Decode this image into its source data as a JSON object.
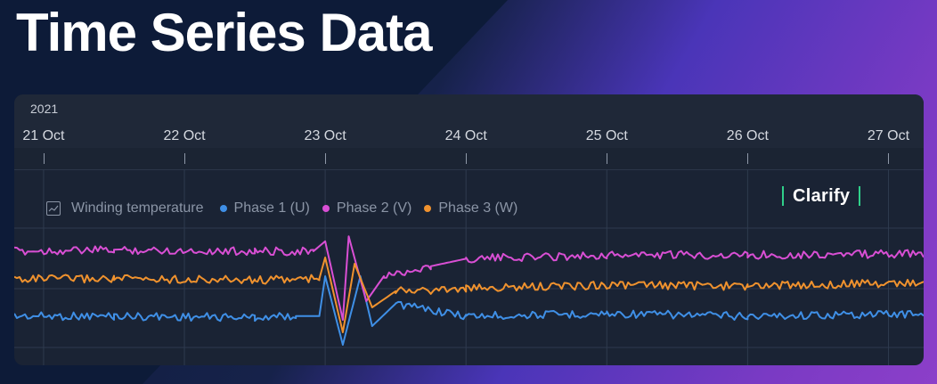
{
  "headline": "Time Series Data",
  "brand": "Clarify",
  "timeline": {
    "year": "2021",
    "dates": [
      "21 Oct",
      "22 Oct",
      "23 Oct",
      "24 Oct",
      "25 Oct",
      "26 Oct",
      "27 Oct"
    ]
  },
  "legend": {
    "group": "Winding temperature",
    "separator": "•",
    "items": [
      {
        "label": "Phase 1 (U)",
        "color": "#3f8fe6"
      },
      {
        "label": "Phase 2 (V)",
        "color": "#d94fd4"
      },
      {
        "label": "Phase 3 (W)",
        "color": "#f0922e"
      }
    ]
  },
  "colors": {
    "background_dark": "#0d1b38",
    "background_purple": "#8c3fc9",
    "panel": "#1a2334",
    "brand_accent": "#2fd08a"
  },
  "chart_data": {
    "type": "line",
    "title": "",
    "group": "Winding temperature",
    "x_unit": "date",
    "xlim": [
      "2021-10-20T19:00",
      "2021-10-27T06:00"
    ],
    "ylim": [
      0,
      100
    ],
    "grid": true,
    "legend_position": "top-left",
    "x_tick_labels": [
      "21 Oct",
      "22 Oct",
      "23 Oct",
      "24 Oct",
      "25 Oct",
      "26 Oct",
      "27 Oct"
    ],
    "series": [
      {
        "name": "Phase 1 (U)",
        "color": "#3f8fe6",
        "points": [
          [
            "2021-10-20T19:00",
            28
          ],
          [
            "2021-10-21T12:00",
            28
          ],
          [
            "2021-10-22T12:00",
            27
          ],
          [
            "2021-10-22T19:00",
            28
          ],
          [
            "2021-10-22T23:00",
            28
          ],
          [
            "2021-10-23T00:00",
            60
          ],
          [
            "2021-10-23T03:00",
            5
          ],
          [
            "2021-10-23T06:00",
            60
          ],
          [
            "2021-10-23T08:00",
            20
          ],
          [
            "2021-10-23T12:00",
            38
          ],
          [
            "2021-10-24T00:00",
            28
          ],
          [
            "2021-10-25T00:00",
            30
          ],
          [
            "2021-10-26T00:00",
            28
          ],
          [
            "2021-10-27T06:00",
            30
          ]
        ]
      },
      {
        "name": "Phase 2 (V)",
        "color": "#d94fd4",
        "points": [
          [
            "2021-10-20T19:00",
            80
          ],
          [
            "2021-10-21T12:00",
            81
          ],
          [
            "2021-10-22T12:00",
            80
          ],
          [
            "2021-10-22T22:00",
            80
          ],
          [
            "2021-10-23T00:00",
            88
          ],
          [
            "2021-10-23T03:00",
            25
          ],
          [
            "2021-10-23T04:00",
            92
          ],
          [
            "2021-10-23T07:00",
            40
          ],
          [
            "2021-10-23T10:00",
            60
          ],
          [
            "2021-10-23T18:00",
            68
          ],
          [
            "2021-10-24T00:00",
            74
          ],
          [
            "2021-10-25T00:00",
            77
          ],
          [
            "2021-10-26T00:00",
            77
          ],
          [
            "2021-10-27T06:00",
            78
          ]
        ]
      },
      {
        "name": "Phase 3 (W)",
        "color": "#f0922e",
        "points": [
          [
            "2021-10-20T19:00",
            58
          ],
          [
            "2021-10-21T12:00",
            58
          ],
          [
            "2021-10-22T12:00",
            57
          ],
          [
            "2021-10-22T23:00",
            58
          ],
          [
            "2021-10-23T00:00",
            75
          ],
          [
            "2021-10-23T03:00",
            15
          ],
          [
            "2021-10-23T05:00",
            70
          ],
          [
            "2021-10-23T08:00",
            35
          ],
          [
            "2021-10-23T12:00",
            48
          ],
          [
            "2021-10-24T00:00",
            50
          ],
          [
            "2021-10-25T00:00",
            53
          ],
          [
            "2021-10-26T00:00",
            52
          ],
          [
            "2021-10-27T06:00",
            55
          ]
        ]
      }
    ]
  }
}
